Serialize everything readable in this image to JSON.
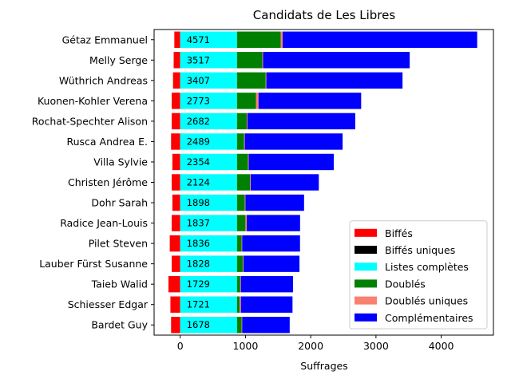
{
  "chart_data": {
    "type": "bar",
    "orientation": "horizontal",
    "stacked": true,
    "title": "Candidats de Les Libres",
    "xlabel": "Suffrages",
    "ylabel": "",
    "xlim": [
      -400,
      4800
    ],
    "xticks": [
      0,
      1000,
      2000,
      3000,
      4000
    ],
    "xtick_labels": [
      "0",
      "1000",
      "2000",
      "3000",
      "4000"
    ],
    "legend_position": "lower-right",
    "categories": [
      "Gétaz Emmanuel",
      "Melly Serge",
      "Wüthrich Andreas",
      "Kuonen-Kohler Verena",
      "Rochat-Spechter Alison",
      "Rusca Andrea E.",
      "Villa Sylvie",
      "Christen Jérôme",
      "Dohr Sarah",
      "Radice Jean-Louis",
      "Pilet Steven",
      "Lauber Fürst Susanne",
      "Taieb Walid",
      "Schiesser Edgar",
      "Bardet Guy"
    ],
    "totals": [
      4571,
      3517,
      3407,
      2773,
      2682,
      2489,
      2354,
      2124,
      1898,
      1837,
      1836,
      1828,
      1729,
      1721,
      1678
    ],
    "total_labels": [
      "4571",
      "3517",
      "3407",
      "2773",
      "2682",
      "2489",
      "2354",
      "2124",
      "1898",
      "1837",
      "1836",
      "1828",
      "1729",
      "1721",
      "1678"
    ],
    "series": [
      {
        "name": "Biffés",
        "color": "#ff0000",
        "negative": true,
        "values": [
          -90,
          -100,
          -110,
          -130,
          -130,
          -140,
          -120,
          -130,
          -120,
          -130,
          -160,
          -130,
          -180,
          -150,
          -140
        ]
      },
      {
        "name": "Biffés uniques",
        "color": "#000000",
        "negative": true,
        "values": [
          0,
          0,
          0,
          0,
          0,
          0,
          0,
          0,
          0,
          0,
          0,
          0,
          0,
          0,
          0
        ]
      },
      {
        "name": "Listes complètes",
        "color": "#00ffff",
        "values": [
          870,
          870,
          870,
          870,
          870,
          870,
          870,
          870,
          870,
          870,
          870,
          870,
          870,
          870,
          870
        ]
      },
      {
        "name": "Doublés",
        "color": "#008000",
        "values": [
          670,
          390,
          440,
          290,
          150,
          110,
          170,
          200,
          120,
          130,
          70,
          90,
          50,
          40,
          70
        ]
      },
      {
        "name": "Doublés uniques",
        "color": "#fa8072",
        "values": [
          30,
          10,
          10,
          40,
          10,
          10,
          10,
          10,
          10,
          20,
          10,
          10,
          10,
          20,
          10
        ]
      },
      {
        "name": "Complémentaires",
        "color": "#0000ff",
        "values": [
          2981,
          2247,
          2087,
          1573,
          1652,
          1499,
          1304,
          1044,
          898,
          817,
          886,
          858,
          799,
          791,
          728
        ]
      }
    ]
  }
}
